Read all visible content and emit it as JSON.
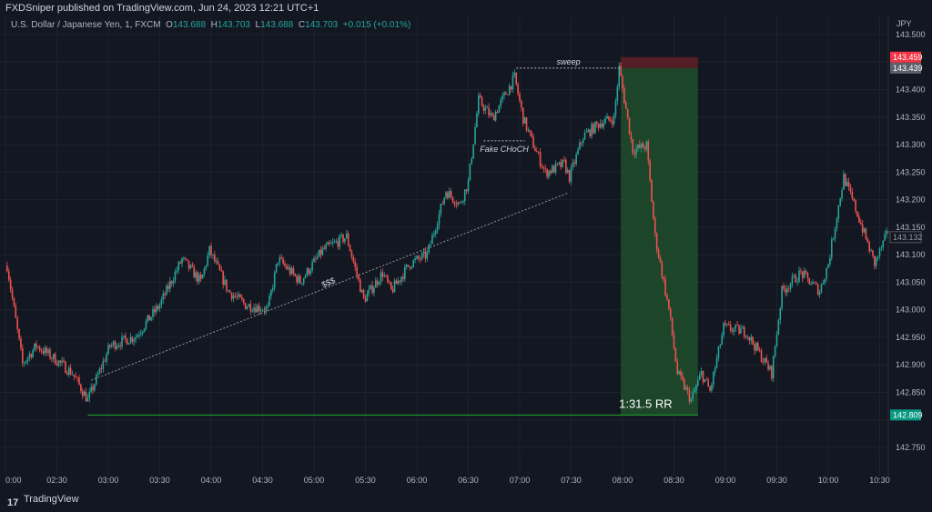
{
  "header": {
    "published": "FXDSniper published on TradingView.com, Jun 24, 2023 12:21 UTC+1"
  },
  "legend": {
    "symbol": "U.S. Dollar / Japanese Yen, 1, FXCM",
    "o_label": "O",
    "o": "143.688",
    "h_label": "H",
    "h": "143.703",
    "l_label": "L",
    "l": "143.688",
    "c_label": "C",
    "c": "143.703",
    "change": "+0.015 (+0.01%)"
  },
  "footer": {
    "brand": "TradingView"
  },
  "colors": {
    "up": "#26a69a",
    "down": "#ef5350",
    "bg": "#131722",
    "profit": "#1e4d2b",
    "loss": "#5b1f26"
  },
  "chart_data": {
    "type": "candlestick",
    "currency_label": "JPY",
    "ylim": [
      142.72,
      143.51
    ],
    "y_ticks": [
      "143.500",
      "143.400",
      "143.350",
      "143.300",
      "143.250",
      "143.200",
      "143.150",
      "143.100",
      "143.050",
      "143.000",
      "142.950",
      "142.900",
      "142.850",
      "142.750"
    ],
    "x_ticks": [
      "0:00",
      "02:30",
      "03:00",
      "03:30",
      "04:00",
      "04:30",
      "05:00",
      "05:30",
      "06:00",
      "06:30",
      "07:00",
      "07:30",
      "08:00",
      "08:30",
      "09:00",
      "09:30",
      "10:00",
      "10:30"
    ],
    "price_path": [
      [
        "02:01",
        143.08
      ],
      [
        "02:10",
        142.902
      ],
      [
        "02:18",
        142.935
      ],
      [
        "02:29",
        142.91
      ],
      [
        "02:39",
        142.885
      ],
      [
        "02:48",
        142.836
      ],
      [
        "03:01",
        142.935
      ],
      [
        "03:16",
        142.952
      ],
      [
        "03:30",
        143.009
      ],
      [
        "03:43",
        143.092
      ],
      [
        "03:54",
        143.051
      ],
      [
        "03:59",
        143.108
      ],
      [
        "04:10",
        143.034
      ],
      [
        "04:20",
        143.009
      ],
      [
        "04:33",
        143.001
      ],
      [
        "04:39",
        143.092
      ],
      [
        "04:52",
        143.051
      ],
      [
        "05:05",
        143.108
      ],
      [
        "05:19",
        143.133
      ],
      [
        "05:29",
        143.018
      ],
      [
        "05:40",
        143.067
      ],
      [
        "05:45",
        143.034
      ],
      [
        "05:56",
        143.084
      ],
      [
        "06:06",
        143.1
      ],
      [
        "06:17",
        143.216
      ],
      [
        "06:25",
        143.191
      ],
      [
        "06:30",
        143.232
      ],
      [
        "06:36",
        143.381
      ],
      [
        "06:44",
        143.348
      ],
      [
        "06:57",
        143.422
      ],
      [
        "07:02",
        143.348
      ],
      [
        "07:07",
        143.307
      ],
      [
        "07:15",
        143.249
      ],
      [
        "07:26",
        143.265
      ],
      [
        "07:29",
        143.241
      ],
      [
        "07:37",
        143.315
      ],
      [
        "07:47",
        143.34
      ],
      [
        "07:55",
        143.348
      ],
      [
        "07:58",
        143.439
      ],
      [
        "08:06",
        143.29
      ],
      [
        "08:14",
        143.298
      ],
      [
        "08:19",
        143.133
      ],
      [
        "08:27",
        143.001
      ],
      [
        "08:32",
        142.885
      ],
      [
        "08:40",
        142.836
      ],
      [
        "08:46",
        142.885
      ],
      [
        "08:51",
        142.852
      ],
      [
        "08:59",
        142.968
      ],
      [
        "09:12",
        142.96
      ],
      [
        "09:27",
        142.885
      ],
      [
        "09:33",
        143.034
      ],
      [
        "09:44",
        143.067
      ],
      [
        "09:55",
        143.034
      ],
      [
        "10:00",
        143.084
      ],
      [
        "10:09",
        143.241
      ],
      [
        "10:16",
        143.183
      ],
      [
        "10:27",
        143.084
      ],
      [
        "10:35",
        143.142
      ]
    ],
    "price_labels": [
      {
        "value": "143.459",
        "color": "#f23645"
      },
      {
        "value": "143.439",
        "color": "#5d606b"
      },
      {
        "value": "143.132",
        "color": "outline"
      },
      {
        "value": "142.809",
        "color": "#089981"
      }
    ],
    "annotations": {
      "sweep": "sweep",
      "choch": "Fake CHoCH",
      "liquidity": "$$$",
      "rr": "1:31.5 RR"
    },
    "position": {
      "entry": 143.439,
      "stop": 143.459,
      "target": 142.809,
      "start": "07:59",
      "end": "08:44"
    },
    "sweep_level": {
      "price": 143.439,
      "from": "06:58",
      "to": "07:59"
    },
    "choch_level": {
      "price": 143.307,
      "from": "06:39",
      "to": "07:03"
    },
    "trendline": {
      "from": [
        "02:50",
        142.872
      ],
      "to": [
        "07:28",
        143.212
      ]
    },
    "target_line": {
      "price": 142.809,
      "from": "02:48",
      "to": "08:44"
    }
  }
}
